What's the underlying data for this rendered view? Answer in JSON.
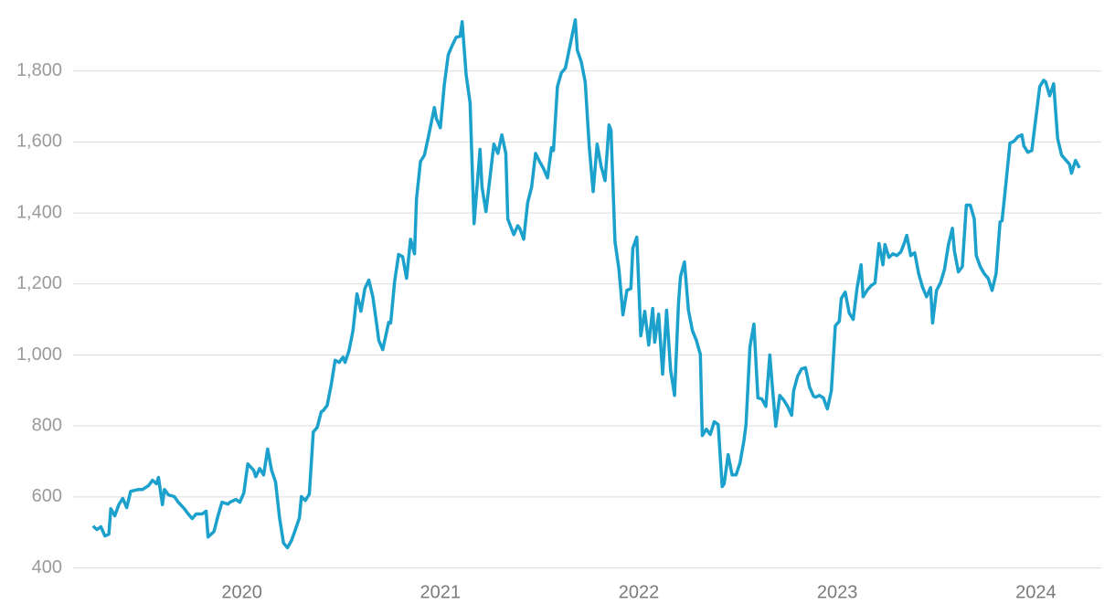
{
  "chart_data": {
    "type": "line",
    "color": "#1ba1cc",
    "grid": true,
    "xlim": [
      2019.15,
      2024.33
    ],
    "xticks": [
      2020,
      2021,
      2022,
      2023,
      2024
    ],
    "ylim": [
      350,
      2000
    ],
    "yticks": [
      400,
      600,
      800,
      {
        "value": 1000,
        "label": "1,000"
      },
      {
        "value": 1200,
        "label": "1,200"
      },
      {
        "value": 1400,
        "label": "1,400"
      },
      {
        "value": 1600,
        "label": "1,600"
      },
      {
        "value": 1800,
        "label": "1,800"
      }
    ],
    "x": [
      2019.25,
      2019.27,
      2019.29,
      2019.31,
      2019.33,
      2019.34,
      2019.36,
      2019.38,
      2019.4,
      2019.42,
      2019.44,
      2019.48,
      2019.5,
      2019.53,
      2019.55,
      2019.57,
      2019.58,
      2019.6,
      2019.61,
      2019.63,
      2019.66,
      2019.68,
      2019.71,
      2019.73,
      2019.75,
      2019.77,
      2019.8,
      2019.82,
      2019.83,
      2019.86,
      2019.88,
      2019.9,
      2019.93,
      2019.94,
      2019.97,
      2019.99,
      2020.01,
      2020.03,
      2020.06,
      2020.07,
      2020.09,
      2020.11,
      2020.13,
      2020.15,
      2020.17,
      2020.19,
      2020.21,
      2020.23,
      2020.25,
      2020.27,
      2020.29,
      2020.3,
      2020.32,
      2020.34,
      2020.36,
      2020.38,
      2020.4,
      2020.41,
      2020.43,
      2020.45,
      2020.47,
      2020.49,
      2020.51,
      2020.52,
      2020.54,
      2020.56,
      2020.58,
      2020.6,
      2020.62,
      2020.64,
      2020.66,
      2020.68,
      2020.69,
      2020.71,
      2020.74,
      2020.75,
      2020.77,
      2020.79,
      2020.81,
      2020.83,
      2020.85,
      2020.87,
      2020.88,
      2020.9,
      2020.92,
      2020.94,
      2020.97,
      2020.98,
      2021.0,
      2021.02,
      2021.04,
      2021.06,
      2021.08,
      2021.1,
      2021.11,
      2021.13,
      2021.15,
      2021.17,
      2021.2,
      2021.21,
      2021.23,
      2021.25,
      2021.27,
      2021.29,
      2021.31,
      2021.33,
      2021.34,
      2021.37,
      2021.39,
      2021.4,
      2021.42,
      2021.44,
      2021.46,
      2021.48,
      2021.5,
      2021.52,
      2021.54,
      2021.56,
      2021.57,
      2021.59,
      2021.61,
      2021.63,
      2021.65,
      2021.68,
      2021.69,
      2021.71,
      2021.73,
      2021.75,
      2021.77,
      2021.79,
      2021.81,
      2021.83,
      2021.85,
      2021.86,
      2021.88,
      2021.9,
      2021.92,
      2021.94,
      2021.96,
      2021.97,
      2021.99,
      2022.01,
      2022.03,
      2022.05,
      2022.07,
      2022.08,
      2022.1,
      2022.12,
      2022.14,
      2022.16,
      2022.18,
      2022.2,
      2022.21,
      2022.23,
      2022.25,
      2022.27,
      2022.29,
      2022.31,
      2022.32,
      2022.34,
      2022.36,
      2022.38,
      2022.4,
      2022.42,
      2022.43,
      2022.45,
      2022.47,
      2022.49,
      2022.51,
      2022.53,
      2022.54,
      2022.56,
      2022.58,
      2022.6,
      2022.62,
      2022.64,
      2022.66,
      2022.67,
      2022.69,
      2022.71,
      2022.73,
      2022.75,
      2022.77,
      2022.78,
      2022.8,
      2022.82,
      2022.84,
      2022.86,
      2022.88,
      2022.89,
      2022.91,
      2022.93,
      2022.95,
      2022.97,
      2022.99,
      2023.01,
      2023.02,
      2023.04,
      2023.06,
      2023.08,
      2023.1,
      2023.12,
      2023.13,
      2023.15,
      2023.17,
      2023.19,
      2023.21,
      2023.23,
      2023.24,
      2023.26,
      2023.28,
      2023.3,
      2023.32,
      2023.34,
      2023.35,
      2023.37,
      2023.39,
      2023.41,
      2023.43,
      2023.45,
      2023.47,
      2023.48,
      2023.5,
      2023.52,
      2023.54,
      2023.56,
      2023.58,
      2023.59,
      2023.61,
      2023.63,
      2023.65,
      2023.67,
      2023.69,
      2023.7,
      2023.72,
      2023.74,
      2023.76,
      2023.78,
      2023.8,
      2023.82,
      2023.83,
      2023.85,
      2023.87,
      2023.89,
      2023.91,
      2023.93,
      2023.94,
      2023.96,
      2023.98,
      2024.0,
      2024.02,
      2024.04,
      2024.05,
      2024.07,
      2024.09,
      2024.11,
      2024.13,
      2024.15,
      2024.17,
      2024.18,
      2024.2,
      2024.22
    ],
    "values": [
      518,
      508,
      516,
      490,
      495,
      567,
      547,
      578,
      596,
      570,
      616,
      621,
      621,
      632,
      647,
      637,
      655,
      578,
      621,
      606,
      601,
      585,
      567,
      552,
      539,
      552,
      552,
      560,
      487,
      503,
      547,
      585,
      580,
      585,
      593,
      585,
      611,
      693,
      675,
      657,
      680,
      662,
      735,
      675,
      642,
      541,
      470,
      457,
      477,
      508,
      541,
      601,
      590,
      608,
      783,
      796,
      840,
      843,
      858,
      915,
      985,
      979,
      994,
      979,
      1012,
      1069,
      1172,
      1123,
      1187,
      1211,
      1164,
      1084,
      1041,
      1015,
      1092,
      1090,
      1208,
      1283,
      1277,
      1216,
      1326,
      1285,
      1440,
      1545,
      1563,
      1615,
      1697,
      1666,
      1640,
      1761,
      1846,
      1872,
      1895,
      1898,
      1939,
      1790,
      1710,
      1370,
      1579,
      1473,
      1404,
      1499,
      1594,
      1568,
      1620,
      1568,
      1383,
      1339,
      1364,
      1357,
      1326,
      1429,
      1473,
      1568,
      1545,
      1525,
      1499,
      1584,
      1576,
      1756,
      1795,
      1808,
      1862,
      1944,
      1859,
      1826,
      1769,
      1589,
      1460,
      1594,
      1532,
      1491,
      1648,
      1633,
      1319,
      1241,
      1113,
      1182,
      1187,
      1301,
      1332,
      1054,
      1123,
      1028,
      1131,
      1036,
      1115,
      946,
      1126,
      958,
      886,
      1146,
      1221,
      1262,
      1126,
      1069,
      1041,
      1002,
      773,
      791,
      776,
      812,
      804,
      629,
      637,
      719,
      662,
      662,
      696,
      760,
      804,
      1023,
      1087,
      879,
      876,
      855,
      1000,
      930,
      799,
      886,
      873,
      855,
      830,
      899,
      940,
      961,
      964,
      910,
      884,
      881,
      886,
      879,
      848,
      899,
      1082,
      1095,
      1159,
      1177,
      1118,
      1100,
      1190,
      1254,
      1164,
      1182,
      1195,
      1203,
      1314,
      1254,
      1311,
      1275,
      1285,
      1280,
      1290,
      1319,
      1337,
      1280,
      1288,
      1229,
      1190,
      1164,
      1190,
      1090,
      1182,
      1203,
      1241,
      1311,
      1357,
      1293,
      1234,
      1249,
      1422,
      1422,
      1383,
      1280,
      1249,
      1229,
      1216,
      1182,
      1229,
      1375,
      1378,
      1486,
      1597,
      1602,
      1615,
      1620,
      1589,
      1571,
      1576,
      1666,
      1756,
      1774,
      1769,
      1730,
      1764,
      1610,
      1563,
      1550,
      1537,
      1512,
      1548,
      1527
    ]
  }
}
